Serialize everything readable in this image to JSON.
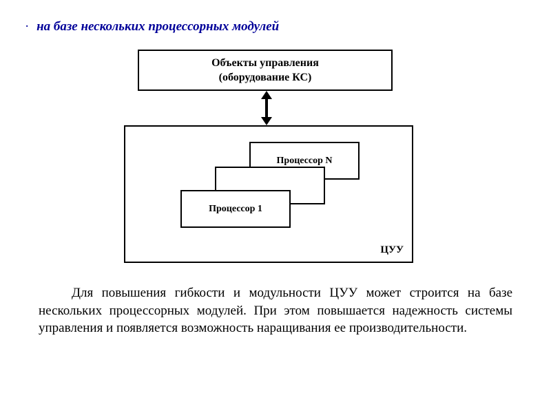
{
  "title": {
    "bullet": "·",
    "text": "на базе нескольких процессорных модулей"
  },
  "diagram": {
    "top_box": {
      "line1": "Объекты управления",
      "line2": "(оборудование КС)"
    },
    "big_box_label": "ЦУУ",
    "processors": {
      "n": "Процессор N",
      "one": "Процессор 1"
    },
    "colors": {
      "border": "#000000",
      "background": "#ffffff",
      "title": "#000099"
    }
  },
  "paragraph": "Для повышения гибкости и модульности ЦУУ может строится на базе нескольких процессорных модулей. При этом повышается надежность системы управления и появляется возможность наращивания ее производительности."
}
